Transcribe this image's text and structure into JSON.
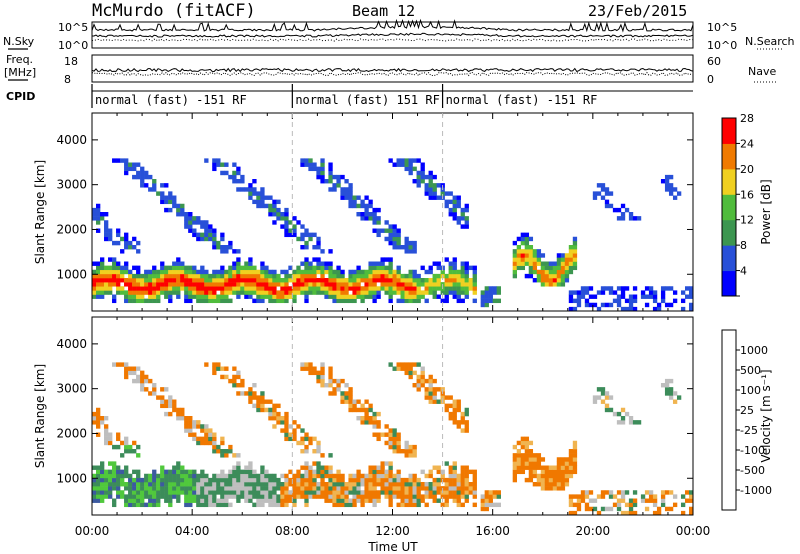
{
  "header": {
    "station": "McMurdo (fitACF)",
    "beam": "Beam 12",
    "date": "23/Feb/2015"
  },
  "noise_panel": {
    "left_label": "N.Sky",
    "right_label": "N.Search",
    "left_ticks": [
      "10^5",
      "10^0"
    ],
    "right_ticks": [
      "10^5",
      "10^0"
    ]
  },
  "freq_panel": {
    "left_label_1": "Freq.",
    "left_label_2": "[MHz]",
    "right_label": "Nave",
    "left_ticks": [
      "18",
      "8"
    ],
    "right_ticks": [
      "60",
      "0"
    ]
  },
  "cpid_panel": {
    "label": "CPID",
    "segments": [
      {
        "text": "normal (fast) -151 RF",
        "start_hour": 0
      },
      {
        "text": "normal (fast) 151 RF",
        "start_hour": 8
      },
      {
        "text": "normal (fast) -151 RF",
        "start_hour": 14
      }
    ]
  },
  "chart_data": [
    {
      "type": "heatmap",
      "name": "power",
      "ylabel": "Slant Range [km]",
      "y_ticks": [
        "1000",
        "2000",
        "3000",
        "4000"
      ],
      "ylim": [
        180,
        4600
      ],
      "x_tick_labels": [
        "00:00",
        "04:00",
        "08:00",
        "12:00",
        "16:00",
        "20:00",
        "00:00"
      ],
      "x_tick_hours": [
        0,
        4,
        8,
        12,
        16,
        20,
        24
      ],
      "xlim_hours": [
        0,
        24
      ],
      "colorbar_label": "Power [dB]",
      "colorbar_ticks": [
        "4",
        "8",
        "12",
        "16",
        "20",
        "24",
        "28"
      ],
      "colors": [
        "#0000ff",
        "#2850d8",
        "#3c9650",
        "#50bc3c",
        "#f0d020",
        "#f07a00",
        "#ff0000"
      ]
    },
    {
      "type": "heatmap",
      "name": "velocity",
      "ylabel": "Slant Range [km]",
      "y_ticks": [
        "1000",
        "2000",
        "3000",
        "4000"
      ],
      "ylim": [
        180,
        4600
      ],
      "x_tick_labels": [
        "00:00",
        "04:00",
        "08:00",
        "12:00",
        "16:00",
        "20:00",
        "00:00"
      ],
      "x_tick_hours": [
        0,
        4,
        8,
        12,
        16,
        20,
        24
      ],
      "xlim_hours": [
        0,
        24
      ],
      "xlabel": "Time UT",
      "colorbar_label": "Velocity [m s⁻¹]",
      "colorbar_ticks": [
        "1000",
        "500",
        "100",
        "25",
        "-25",
        "-100",
        "-500",
        "-1000"
      ],
      "colors": [
        "#2836c8",
        "#3c5aa0",
        "#3c8c5a",
        "#50c83c",
        "#bebebe",
        "#f0b450",
        "#f07800",
        "#ff3c00",
        "#ff0000"
      ]
    }
  ]
}
